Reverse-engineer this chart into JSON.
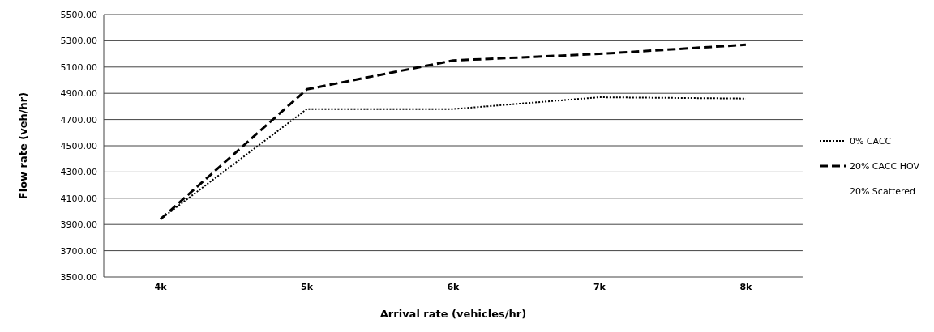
{
  "chart_data": {
    "type": "line",
    "xlabel": "Arrival rate (vehicles/hr)",
    "ylabel": "Flow rate (veh/hr)",
    "categories": [
      "4k",
      "5k",
      "6k",
      "7k",
      "8k"
    ],
    "series": [
      {
        "name": "0% CACC",
        "color": "#000000",
        "line_style": "dotted",
        "values": [
          3940,
          4780,
          4780,
          4870,
          4860
        ]
      },
      {
        "name": "20% CACC HOV",
        "color": "#000000",
        "line_style": "dashed",
        "values": [
          3940,
          4930,
          5150,
          5200,
          5270
        ]
      },
      {
        "name": "20% Scattered",
        "values": [
          null,
          null,
          null,
          null,
          null
        ]
      }
    ],
    "ylim": [
      3500,
      5500
    ],
    "yticks": [
      {
        "value": 3500,
        "label": "3500.00"
      },
      {
        "value": 3700,
        "label": "3700.00"
      },
      {
        "value": 3900,
        "label": "3900.00"
      },
      {
        "value": 4100,
        "label": "4100.00"
      },
      {
        "value": 4300,
        "label": "4300.00"
      },
      {
        "value": 4500,
        "label": "4500.00"
      },
      {
        "value": 4700,
        "label": "4700.00"
      },
      {
        "value": 4900,
        "label": "4900.00"
      },
      {
        "value": 5100,
        "label": "5100.00"
      },
      {
        "value": 5300,
        "label": "5300.00"
      },
      {
        "value": 5500,
        "label": "5500.00"
      }
    ],
    "grid": "y",
    "legend": "right",
    "marker": "none"
  }
}
